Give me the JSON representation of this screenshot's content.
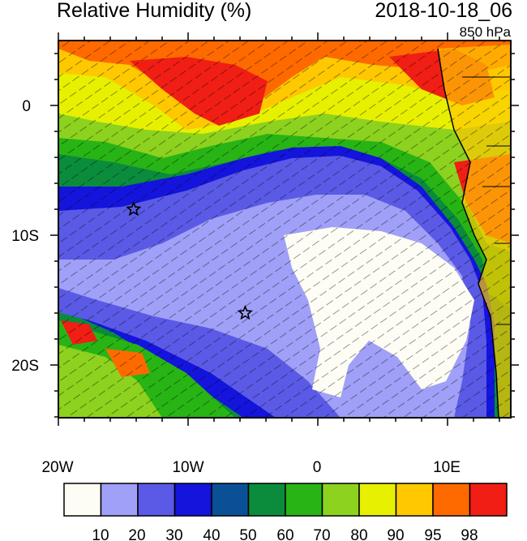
{
  "title": "Relative Humidity (%)",
  "datetime": "2018-10-18_06",
  "level": "850 hPa",
  "x_ticks": [
    "20W",
    "10W",
    "0",
    "10E"
  ],
  "y_ticks": [
    "0",
    "10S",
    "20S"
  ],
  "colorbar": {
    "labels": [
      "10",
      "20",
      "30",
      "40",
      "50",
      "60",
      "70",
      "80",
      "90",
      "95",
      "98"
    ],
    "colors": [
      "#fdfdf5",
      "#a0a0f8",
      "#5a5ae6",
      "#1414dc",
      "#0a5096",
      "#0a8c3c",
      "#28b414",
      "#8cd21e",
      "#e6f000",
      "#ffc800",
      "#ff6a00",
      "#f01e14"
    ]
  },
  "markers": [
    {
      "name": "star-1",
      "lon": -14.2,
      "lat": -8.0
    },
    {
      "name": "star-2",
      "lon": -5.6,
      "lat": -16.0
    }
  ]
}
